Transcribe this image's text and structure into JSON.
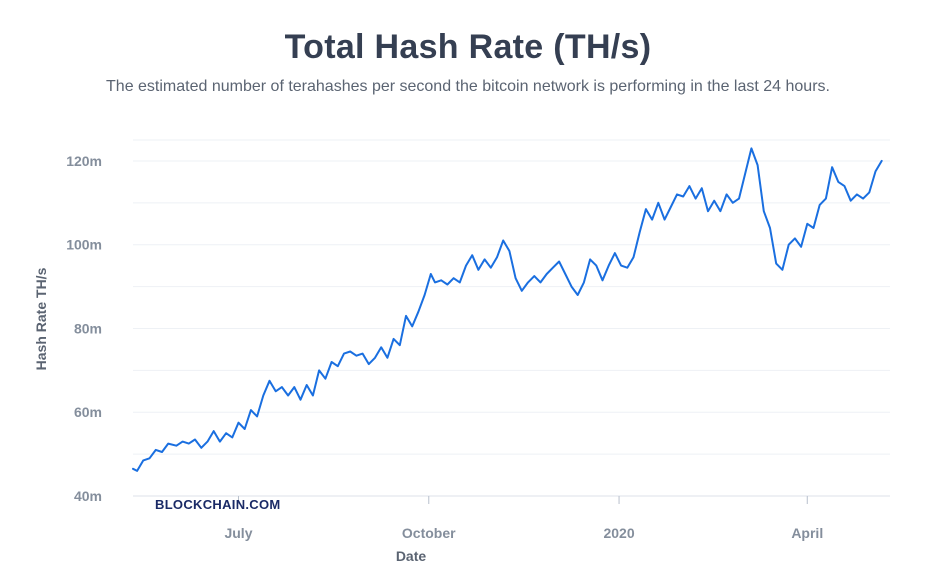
{
  "header": {
    "title": "Total Hash Rate (TH/s)",
    "subtitle": "The estimated number of terahashes per second the bitcoin network is performing in the last 24 hours."
  },
  "watermark": "BLOCKCHAIN.COM",
  "colors": {
    "line": "#1A6FE0",
    "grid": "#EEF1F5",
    "axis": "#DDE2EA"
  },
  "chart_data": {
    "type": "line",
    "xlabel": "Date",
    "ylabel": "Hash Rate TH/s",
    "y_unit_suffix": "m",
    "ylim": [
      40,
      125
    ],
    "yticks": [
      40,
      60,
      80,
      100,
      120
    ],
    "ytick_labels": [
      "40m",
      "60m",
      "80m",
      "100m",
      "120m"
    ],
    "xlim": [
      "2019-05-11",
      "2020-05-11"
    ],
    "xticks": [
      {
        "date": "2019-07-01",
        "label": "July"
      },
      {
        "date": "2019-10-01",
        "label": "October"
      },
      {
        "date": "2020-01-01",
        "label": "2020"
      },
      {
        "date": "2020-04-01",
        "label": "April"
      }
    ],
    "grid": true,
    "legend": "none",
    "series": [
      {
        "points": [
          [
            "2019-05-11",
            46.5
          ],
          [
            "2019-05-13",
            46.0
          ],
          [
            "2019-05-16",
            48.5
          ],
          [
            "2019-05-19",
            49.0
          ],
          [
            "2019-05-22",
            51.0
          ],
          [
            "2019-05-25",
            50.5
          ],
          [
            "2019-05-28",
            52.5
          ],
          [
            "2019-06-01",
            52.0
          ],
          [
            "2019-06-04",
            53.0
          ],
          [
            "2019-06-07",
            52.5
          ],
          [
            "2019-06-10",
            53.5
          ],
          [
            "2019-06-13",
            51.5
          ],
          [
            "2019-06-16",
            53.0
          ],
          [
            "2019-06-19",
            55.5
          ],
          [
            "2019-06-22",
            53.0
          ],
          [
            "2019-06-25",
            55.0
          ],
          [
            "2019-06-28",
            54.0
          ],
          [
            "2019-07-01",
            57.5
          ],
          [
            "2019-07-04",
            56.0
          ],
          [
            "2019-07-07",
            60.5
          ],
          [
            "2019-07-10",
            59.0
          ],
          [
            "2019-07-13",
            64.0
          ],
          [
            "2019-07-16",
            67.5
          ],
          [
            "2019-07-19",
            65.0
          ],
          [
            "2019-07-22",
            66.0
          ],
          [
            "2019-07-25",
            64.0
          ],
          [
            "2019-07-28",
            66.0
          ],
          [
            "2019-07-31",
            63.0
          ],
          [
            "2019-08-03",
            66.5
          ],
          [
            "2019-08-06",
            64.0
          ],
          [
            "2019-08-09",
            70.0
          ],
          [
            "2019-08-12",
            68.0
          ],
          [
            "2019-08-15",
            72.0
          ],
          [
            "2019-08-18",
            71.0
          ],
          [
            "2019-08-21",
            74.0
          ],
          [
            "2019-08-24",
            74.5
          ],
          [
            "2019-08-27",
            73.5
          ],
          [
            "2019-08-30",
            74.0
          ],
          [
            "2019-09-02",
            71.5
          ],
          [
            "2019-09-05",
            73.0
          ],
          [
            "2019-09-08",
            75.5
          ],
          [
            "2019-09-11",
            73.0
          ],
          [
            "2019-09-14",
            77.5
          ],
          [
            "2019-09-17",
            76.0
          ],
          [
            "2019-09-20",
            83.0
          ],
          [
            "2019-09-23",
            80.5
          ],
          [
            "2019-09-26",
            84.0
          ],
          [
            "2019-09-29",
            88.0
          ],
          [
            "2019-10-02",
            93.0
          ],
          [
            "2019-10-04",
            91.0
          ],
          [
            "2019-10-07",
            91.5
          ],
          [
            "2019-10-10",
            90.5
          ],
          [
            "2019-10-13",
            92.0
          ],
          [
            "2019-10-16",
            91.0
          ],
          [
            "2019-10-19",
            95.0
          ],
          [
            "2019-10-22",
            97.5
          ],
          [
            "2019-10-25",
            94.0
          ],
          [
            "2019-10-28",
            96.5
          ],
          [
            "2019-10-31",
            94.5
          ],
          [
            "2019-11-03",
            97.0
          ],
          [
            "2019-11-06",
            101.0
          ],
          [
            "2019-11-09",
            98.5
          ],
          [
            "2019-11-12",
            92.0
          ],
          [
            "2019-11-15",
            89.0
          ],
          [
            "2019-11-18",
            91.0
          ],
          [
            "2019-11-21",
            92.5
          ],
          [
            "2019-11-24",
            91.0
          ],
          [
            "2019-11-27",
            93.0
          ],
          [
            "2019-11-30",
            94.5
          ],
          [
            "2019-12-03",
            96.0
          ],
          [
            "2019-12-06",
            93.0
          ],
          [
            "2019-12-09",
            90.0
          ],
          [
            "2019-12-12",
            88.0
          ],
          [
            "2019-12-15",
            91.0
          ],
          [
            "2019-12-18",
            96.5
          ],
          [
            "2019-12-21",
            95.0
          ],
          [
            "2019-12-24",
            91.5
          ],
          [
            "2019-12-27",
            95.0
          ],
          [
            "2019-12-30",
            98.0
          ],
          [
            "2020-01-02",
            95.0
          ],
          [
            "2020-01-05",
            94.5
          ],
          [
            "2020-01-08",
            97.0
          ],
          [
            "2020-01-11",
            103.0
          ],
          [
            "2020-01-14",
            108.5
          ],
          [
            "2020-01-17",
            106.0
          ],
          [
            "2020-01-20",
            110.0
          ],
          [
            "2020-01-23",
            106.0
          ],
          [
            "2020-01-26",
            109.0
          ],
          [
            "2020-01-29",
            112.0
          ],
          [
            "2020-02-01",
            111.5
          ],
          [
            "2020-02-04",
            114.0
          ],
          [
            "2020-02-07",
            111.0
          ],
          [
            "2020-02-10",
            113.5
          ],
          [
            "2020-02-13",
            108.0
          ],
          [
            "2020-02-16",
            110.5
          ],
          [
            "2020-02-19",
            108.0
          ],
          [
            "2020-02-22",
            112.0
          ],
          [
            "2020-02-25",
            110.0
          ],
          [
            "2020-02-28",
            111.0
          ],
          [
            "2020-03-02",
            117.0
          ],
          [
            "2020-03-05",
            123.0
          ],
          [
            "2020-03-08",
            119.0
          ],
          [
            "2020-03-11",
            108.0
          ],
          [
            "2020-03-14",
            104.0
          ],
          [
            "2020-03-17",
            95.5
          ],
          [
            "2020-03-20",
            94.0
          ],
          [
            "2020-03-23",
            100.0
          ],
          [
            "2020-03-26",
            101.5
          ],
          [
            "2020-03-29",
            99.5
          ],
          [
            "2020-04-01",
            105.0
          ],
          [
            "2020-04-04",
            104.0
          ],
          [
            "2020-04-07",
            109.5
          ],
          [
            "2020-04-10",
            111.0
          ],
          [
            "2020-04-13",
            118.5
          ],
          [
            "2020-04-16",
            115.0
          ],
          [
            "2020-04-19",
            114.0
          ],
          [
            "2020-04-22",
            110.5
          ],
          [
            "2020-04-25",
            112.0
          ],
          [
            "2020-04-28",
            111.0
          ],
          [
            "2020-05-01",
            112.5
          ],
          [
            "2020-05-04",
            117.5
          ],
          [
            "2020-05-07",
            120.0
          ]
        ]
      }
    ]
  }
}
